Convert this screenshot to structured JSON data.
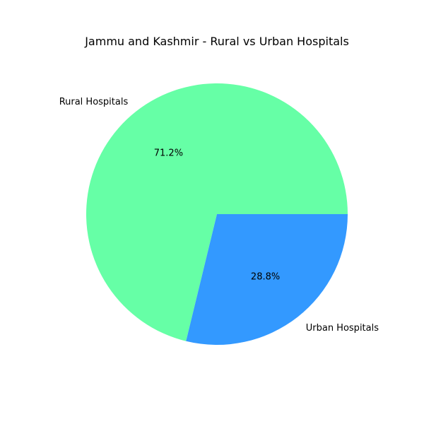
{
  "chart_data": {
    "type": "pie",
    "title": "Jammu and Kashmir - Rural vs Urban Hospitals",
    "slices": [
      {
        "label": "Rural Hospitals",
        "value": 71.2,
        "pct_text": "71.2%",
        "color": "#66ffa6"
      },
      {
        "label": "Urban Hospitals",
        "value": 28.8,
        "pct_text": "28.8%",
        "color": "#3399ff"
      }
    ],
    "start_angle_deg": 0,
    "direction": "counterclockwise",
    "legend": "none"
  }
}
